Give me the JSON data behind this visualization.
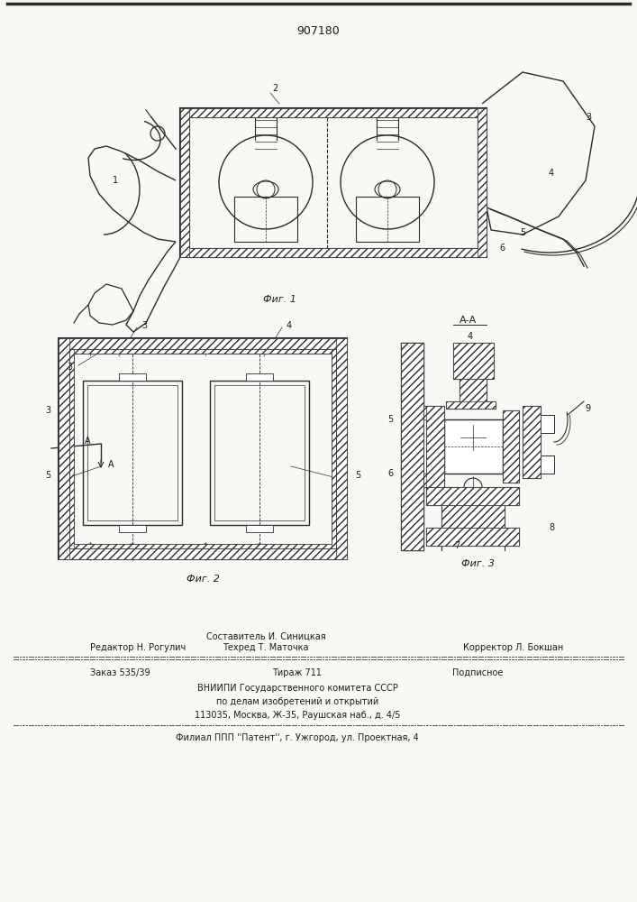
{
  "patent_number": "907180",
  "bg_color": "#f8f8f5",
  "line_color": "#2a2a2a",
  "hatch_color": "#555555",
  "text_color": "#1a1a1a",
  "fig1_caption": "Фиг. 1",
  "fig2_caption": "Фиг. 2",
  "fig3_caption": "Фиг. 3",
  "aa_label": "А-А",
  "footer_sostavitel": "Составитель И. Синицкая",
  "footer_redaktor": "Редактор Н. Рогулич",
  "footer_tehred": "Техред Т. Маточка",
  "footer_korrektor": "Корректор Л. Бокшан",
  "footer_order": "Заказ 535/39",
  "footer_tirazh": "Тираж 711",
  "footer_podp": "Подписное",
  "footer_vnipi": "ВНИИПИ Государственного комитета СССР",
  "footer_delam": "по делам изобретений и открытий",
  "footer_addr": "113035, Москва, Ж-35, Раушская наб., д. 4/5",
  "footer_filial": "Филиал ППП ''Патент'', г. Ужгород, ул. Проектная, 4"
}
